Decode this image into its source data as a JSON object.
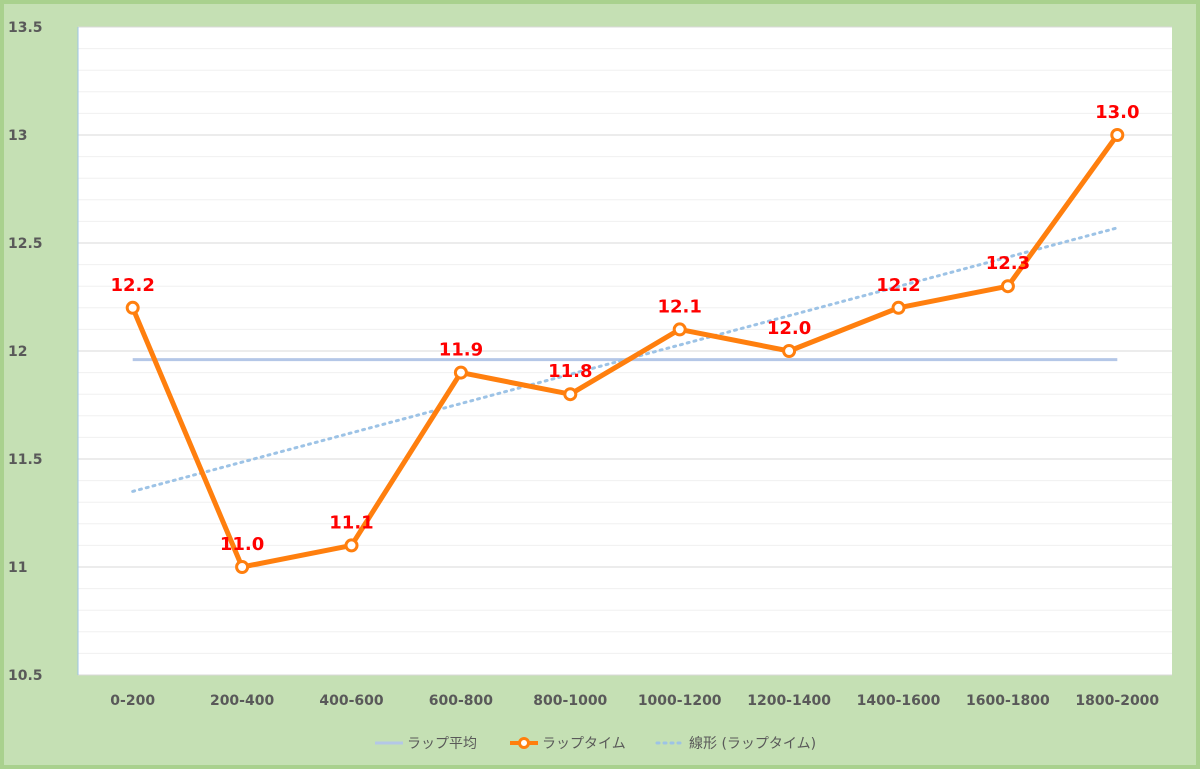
{
  "chart_data": {
    "type": "line",
    "categories": [
      "0-200",
      "200-400",
      "400-600",
      "600-800",
      "800-1000",
      "1000-1200",
      "1200-1400",
      "1400-1600",
      "1600-1800",
      "1800-2000"
    ],
    "series": [
      {
        "name": "ラップ平均",
        "values": [
          11.96,
          11.96,
          11.96,
          11.96,
          11.96,
          11.96,
          11.96,
          11.96,
          11.96,
          11.96
        ],
        "color": "#b4c7e7",
        "style": "solid"
      },
      {
        "name": "ラップタイム",
        "values": [
          12.2,
          11.0,
          11.1,
          11.9,
          11.8,
          12.1,
          12.0,
          12.2,
          12.3,
          13.0
        ],
        "data_labels": [
          "12.2",
          "11.0",
          "11.1",
          "11.9",
          "11.8",
          "12.1",
          "12.0",
          "12.2",
          "12.3",
          "13.0"
        ],
        "color": "#ff7f0e",
        "style": "solid-markers"
      },
      {
        "name": "線形 (ラップタイム)",
        "values": [
          11.35,
          11.486,
          11.621,
          11.757,
          11.892,
          12.028,
          12.163,
          12.299,
          12.434,
          12.57
        ],
        "color": "#9dc3e6",
        "style": "dotted"
      }
    ],
    "ylim": [
      10.5,
      13.5
    ],
    "yticks": [
      "10.5",
      "11",
      "11.5",
      "12",
      "12.5",
      "13",
      "13.5"
    ],
    "ytick_values": [
      10.5,
      11,
      11.5,
      12,
      12.5,
      13,
      13.5
    ],
    "minor_grid_step": 0.1,
    "grid": true,
    "legend_position": "bottom",
    "title": "",
    "xlabel": "",
    "ylabel": ""
  },
  "colors": {
    "frame": "#c5e0b4",
    "frame_border": "#a9d18e",
    "plot_bg": "#ffffff",
    "major_grid": "#d9d9d9",
    "minor_grid": "#f0f0f0",
    "data_label": "#ff0000"
  }
}
